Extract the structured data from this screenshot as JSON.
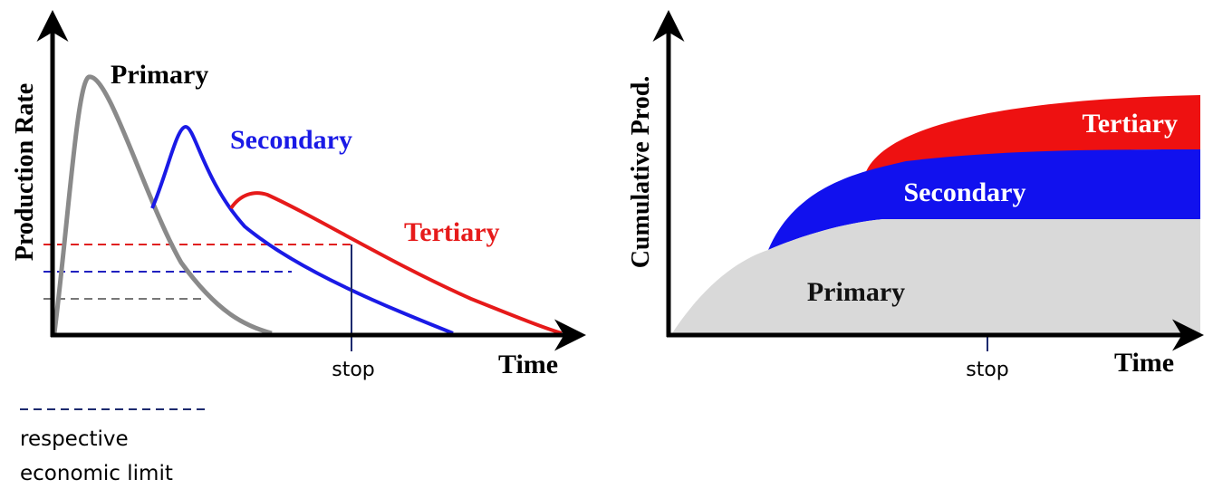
{
  "left": {
    "y_axis_label": "Production Rate",
    "x_axis_label": "Time",
    "stop_label": "stop",
    "curves": {
      "primary": "Primary",
      "secondary": "Secondary",
      "tertiary": "Tertiary"
    }
  },
  "right": {
    "y_axis_label": "Cumulative Prod.",
    "x_axis_label": "Time",
    "stop_label": "stop",
    "areas": {
      "primary": "Primary",
      "secondary": "Secondary",
      "tertiary": "Tertiary"
    }
  },
  "legend": {
    "lines": [
      "respective",
      "economic limit"
    ]
  }
}
